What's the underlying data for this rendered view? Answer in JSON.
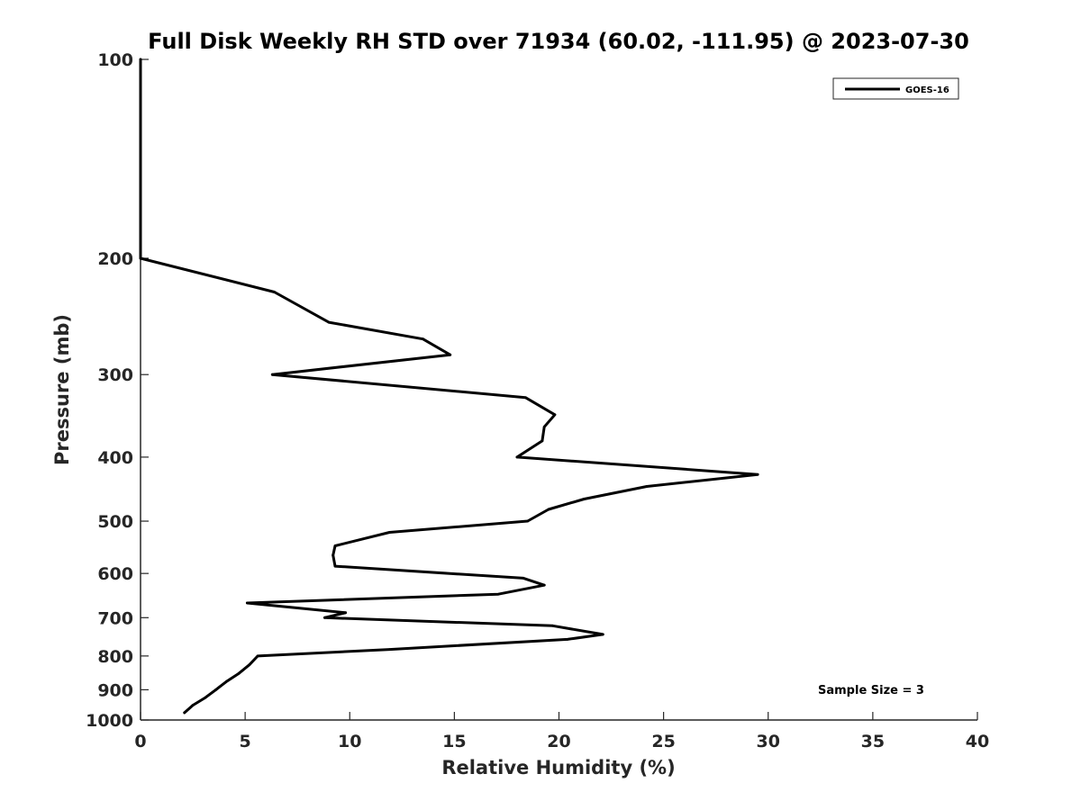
{
  "chart_data": {
    "type": "line",
    "title": "Full Disk Weekly RH STD over 71934 (60.02, -111.95) @ 2023-07-30",
    "xlabel": "Relative Humidity (%)",
    "ylabel": "Pressure (mb)",
    "xlim": [
      0,
      40
    ],
    "ylim": [
      100,
      1000
    ],
    "y_scale": "log",
    "y_reversed": true,
    "x_ticks": [
      0,
      5,
      10,
      15,
      20,
      25,
      30,
      35,
      40
    ],
    "y_ticks": [
      100,
      200,
      300,
      400,
      500,
      600,
      700,
      800,
      900,
      1000
    ],
    "grid": false,
    "legend_position": "top-right",
    "series": [
      {
        "name": "GOES-16",
        "color": "#000000",
        "points": [
          {
            "x": 0,
            "y": 100
          },
          {
            "x": 0,
            "y": 150
          },
          {
            "x": 0,
            "y": 200
          },
          {
            "x": 6.4,
            "y": 225
          },
          {
            "x": 9.0,
            "y": 250
          },
          {
            "x": 13.5,
            "y": 265
          },
          {
            "x": 14.8,
            "y": 280
          },
          {
            "x": 6.3,
            "y": 300
          },
          {
            "x": 18.4,
            "y": 325
          },
          {
            "x": 19.8,
            "y": 345
          },
          {
            "x": 19.3,
            "y": 360
          },
          {
            "x": 19.2,
            "y": 378
          },
          {
            "x": 18.0,
            "y": 400
          },
          {
            "x": 29.5,
            "y": 425
          },
          {
            "x": 24.2,
            "y": 443
          },
          {
            "x": 21.2,
            "y": 463
          },
          {
            "x": 19.5,
            "y": 480
          },
          {
            "x": 18.5,
            "y": 500
          },
          {
            "x": 11.9,
            "y": 520
          },
          {
            "x": 9.3,
            "y": 545
          },
          {
            "x": 9.2,
            "y": 563
          },
          {
            "x": 9.3,
            "y": 585
          },
          {
            "x": 18.3,
            "y": 610
          },
          {
            "x": 19.3,
            "y": 625
          },
          {
            "x": 17.1,
            "y": 645
          },
          {
            "x": 5.1,
            "y": 665
          },
          {
            "x": 9.8,
            "y": 688
          },
          {
            "x": 8.8,
            "y": 700
          },
          {
            "x": 19.7,
            "y": 720
          },
          {
            "x": 22.1,
            "y": 742
          },
          {
            "x": 20.4,
            "y": 755
          },
          {
            "x": 11.9,
            "y": 782
          },
          {
            "x": 5.6,
            "y": 800
          },
          {
            "x": 5.2,
            "y": 825
          },
          {
            "x": 4.7,
            "y": 850
          },
          {
            "x": 4.1,
            "y": 875
          },
          {
            "x": 3.6,
            "y": 900
          },
          {
            "x": 3.1,
            "y": 925
          },
          {
            "x": 2.5,
            "y": 950
          },
          {
            "x": 2.1,
            "y": 975
          }
        ]
      }
    ],
    "annotations": [
      {
        "text": "Sample Size = 3"
      }
    ]
  }
}
